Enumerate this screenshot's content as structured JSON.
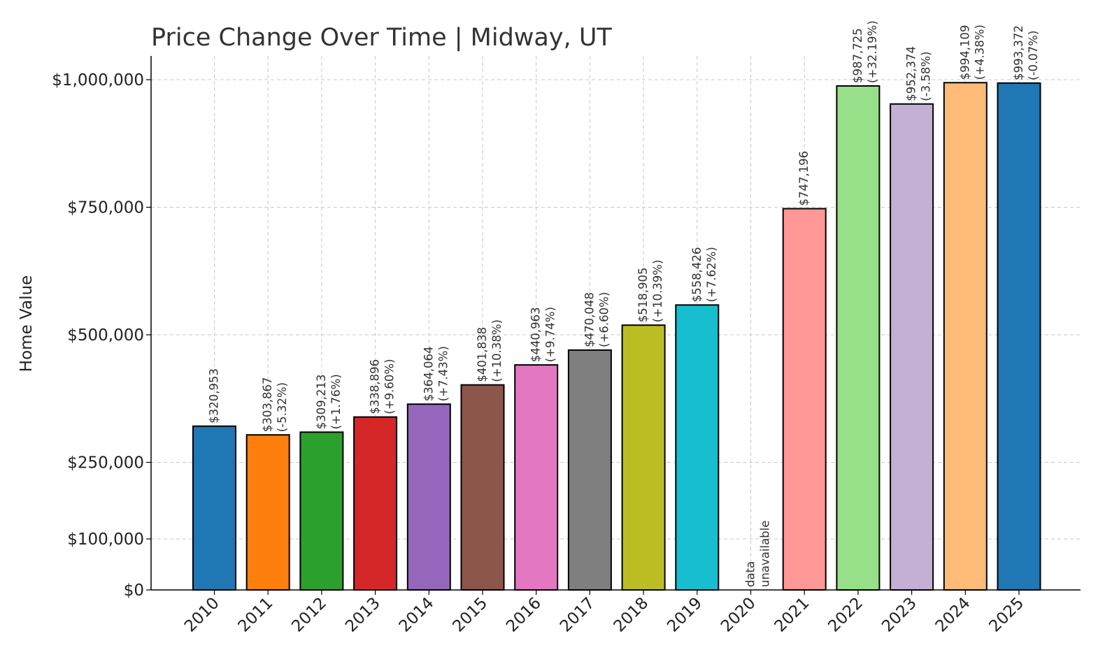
{
  "chart_data": {
    "type": "bar",
    "title": "Price Change Over Time | Midway, UT",
    "xlabel": "",
    "ylabel": "Home Value",
    "categories": [
      "2010",
      "2011",
      "2012",
      "2013",
      "2014",
      "2015",
      "2016",
      "2017",
      "2018",
      "2019",
      "2020",
      "2021",
      "2022",
      "2023",
      "2024",
      "2025"
    ],
    "values": [
      320953,
      303867,
      309213,
      338896,
      364064,
      401838,
      440963,
      470048,
      518905,
      558426,
      null,
      747196,
      987725,
      952374,
      994109,
      993372
    ],
    "value_labels": [
      "$320,953",
      "$303,867",
      "$309,213",
      "$338,896",
      "$364,064",
      "$401,838",
      "$440,963",
      "$470,048",
      "$518,905",
      "$558,426",
      "",
      "$747,196",
      "$987,725",
      "$952,374",
      "$994,109",
      "$993,372"
    ],
    "change_labels": [
      "",
      "(-5.32%)",
      "(+1.76%)",
      "(+9.60%)",
      "(+7.43%)",
      "(+10.38%)",
      "(+9.74%)",
      "(+6.60%)",
      "(+10.39%)",
      "(+7.62%)",
      "",
      "",
      "(+32.19%)",
      "(-3.58%)",
      "(+4.38%)",
      "(-0.07%)"
    ],
    "missing_label": [
      "data",
      "unavailable"
    ],
    "colors": [
      "#1f77b4",
      "#ff7f0e",
      "#2ca02c",
      "#d62728",
      "#9467bd",
      "#8c564b",
      "#e377c2",
      "#7f7f7f",
      "#bcbd22",
      "#17becf",
      "#aec7e8",
      "#ff9896",
      "#98df8a",
      "#c5b0d5",
      "#ffbb78",
      "#1f77b4"
    ],
    "yticks": [
      0,
      100000,
      250000,
      500000,
      750000,
      1000000
    ],
    "ytick_labels": [
      "$0",
      "$100,000",
      "$250,000",
      "$500,000",
      "$750,000",
      "$1,000,000"
    ],
    "ylim": [
      0,
      1000000
    ],
    "grid": true,
    "legend": "none"
  }
}
